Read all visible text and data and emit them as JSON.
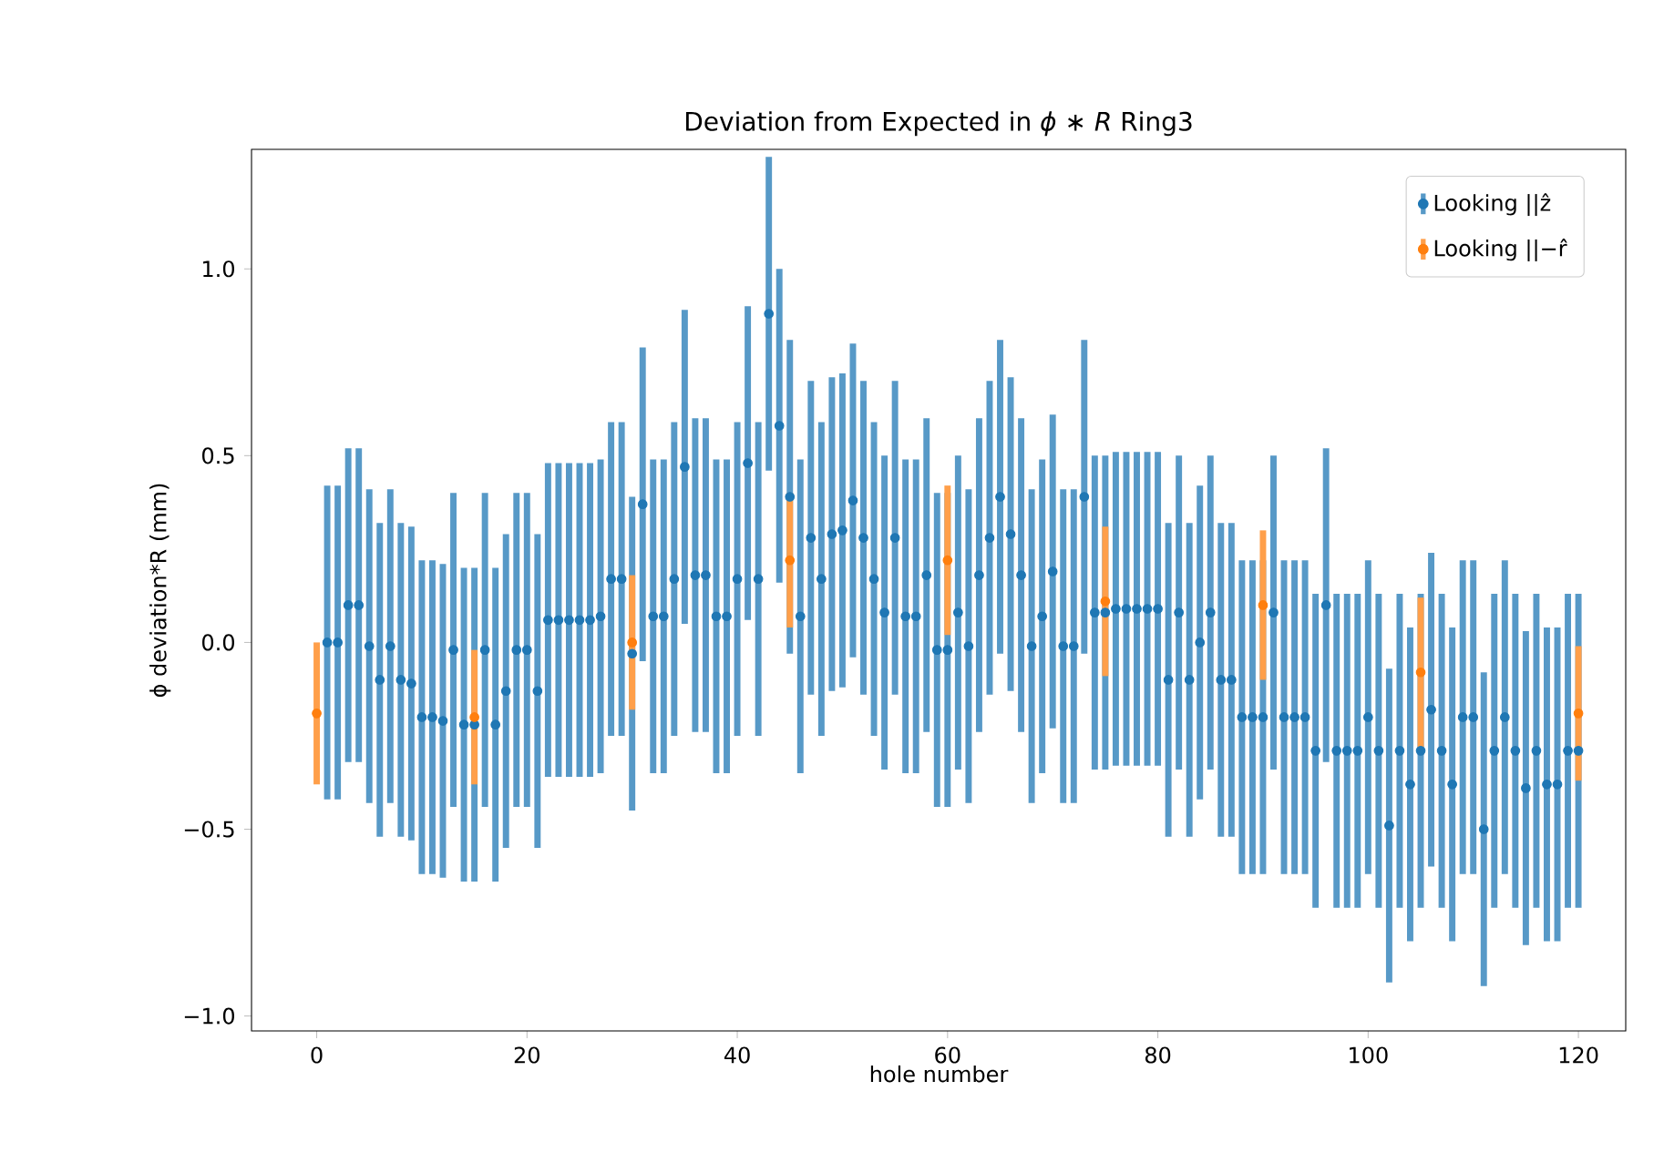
{
  "chart_data": {
    "type": "scatter",
    "title": "Deviation from Expected in *ϕ* ∗ *R* Ring3",
    "xlabel": "hole number",
    "ylabel": "ϕ deviation*R (mm)",
    "xlim": [
      -6.2,
      124.5
    ],
    "ylim": [
      -1.04,
      1.32
    ],
    "xticks": [
      0,
      20,
      40,
      60,
      80,
      100,
      120
    ],
    "yticks": [
      {
        "value": -1.0,
        "label": "−1.0"
      },
      {
        "value": -0.5,
        "label": "−0.5"
      },
      {
        "value": 0.0,
        "label": "0.0"
      },
      {
        "value": 0.5,
        "label": "0.5"
      },
      {
        "value": 1.0,
        "label": "1.0"
      }
    ],
    "legend": "top right",
    "marker": "circle",
    "series": [
      {
        "name": "Looking ||ẑ",
        "color": "#1f77b4",
        "x": [
          1,
          2,
          3,
          4,
          5,
          6,
          7,
          8,
          9,
          10,
          11,
          12,
          13,
          14,
          15,
          16,
          17,
          18,
          19,
          20,
          21,
          22,
          23,
          24,
          25,
          26,
          27,
          28,
          29,
          30,
          31,
          32,
          33,
          34,
          35,
          36,
          37,
          38,
          39,
          40,
          41,
          42,
          43,
          44,
          45,
          46,
          47,
          48,
          49,
          50,
          51,
          52,
          53,
          54,
          55,
          56,
          57,
          58,
          59,
          60,
          61,
          62,
          63,
          64,
          65,
          66,
          67,
          68,
          69,
          70,
          71,
          72,
          73,
          74,
          75,
          76,
          77,
          78,
          79,
          80,
          81,
          82,
          83,
          84,
          85,
          86,
          87,
          88,
          89,
          90,
          91,
          92,
          93,
          94,
          95,
          96,
          97,
          98,
          99,
          100,
          101,
          102,
          103,
          104,
          105,
          106,
          107,
          108,
          109,
          110,
          111,
          112,
          113,
          114,
          115,
          116,
          117,
          118,
          119,
          120
        ],
        "values": [
          0.0,
          0.0,
          0.1,
          0.1,
          -0.01,
          -0.1,
          -0.01,
          -0.1,
          -0.11,
          -0.2,
          -0.2,
          -0.21,
          -0.02,
          -0.22,
          -0.22,
          -0.02,
          -0.22,
          -0.13,
          -0.02,
          -0.02,
          -0.13,
          0.06,
          0.06,
          0.06,
          0.06,
          0.06,
          0.07,
          0.17,
          0.17,
          -0.03,
          0.37,
          0.07,
          0.07,
          0.17,
          0.47,
          0.18,
          0.18,
          0.07,
          0.07,
          0.17,
          0.48,
          0.17,
          0.88,
          0.58,
          0.39,
          0.07,
          0.28,
          0.17,
          0.29,
          0.3,
          0.38,
          0.28,
          0.17,
          0.08,
          0.28,
          0.07,
          0.07,
          0.18,
          -0.02,
          -0.02,
          0.08,
          -0.01,
          0.18,
          0.28,
          0.39,
          0.29,
          0.18,
          -0.01,
          0.07,
          0.19,
          -0.01,
          -0.01,
          0.39,
          0.08,
          0.08,
          0.09,
          0.09,
          0.09,
          0.09,
          0.09,
          -0.1,
          0.08,
          -0.1,
          0.0,
          0.08,
          -0.1,
          -0.1,
          -0.2,
          -0.2,
          -0.2,
          0.08,
          -0.2,
          -0.2,
          -0.2,
          -0.29,
          0.1,
          -0.29,
          -0.29,
          -0.29,
          -0.2,
          -0.29,
          -0.49,
          -0.29,
          -0.38,
          -0.29,
          -0.18,
          -0.29,
          -0.38,
          -0.2,
          -0.2,
          -0.5,
          -0.29,
          -0.2,
          -0.29,
          -0.39,
          -0.29,
          -0.38,
          -0.38,
          -0.29,
          -0.29
        ],
        "errors": [
          0.42,
          0.42,
          0.42,
          0.42,
          0.42,
          0.42,
          0.42,
          0.42,
          0.42,
          0.42,
          0.42,
          0.42,
          0.42,
          0.42,
          0.42,
          0.42,
          0.42,
          0.42,
          0.42,
          0.42,
          0.42,
          0.42,
          0.42,
          0.42,
          0.42,
          0.42,
          0.42,
          0.42,
          0.42,
          0.42,
          0.42,
          0.42,
          0.42,
          0.42,
          0.42,
          0.42,
          0.42,
          0.42,
          0.42,
          0.42,
          0.42,
          0.42,
          0.42,
          0.42,
          0.42,
          0.42,
          0.42,
          0.42,
          0.42,
          0.42,
          0.42,
          0.42,
          0.42,
          0.42,
          0.42,
          0.42,
          0.42,
          0.42,
          0.42,
          0.42,
          0.42,
          0.42,
          0.42,
          0.42,
          0.42,
          0.42,
          0.42,
          0.42,
          0.42,
          0.42,
          0.42,
          0.42,
          0.42,
          0.42,
          0.42,
          0.42,
          0.42,
          0.42,
          0.42,
          0.42,
          0.42,
          0.42,
          0.42,
          0.42,
          0.42,
          0.42,
          0.42,
          0.42,
          0.42,
          0.42,
          0.42,
          0.42,
          0.42,
          0.42,
          0.42,
          0.42,
          0.42,
          0.42,
          0.42,
          0.42,
          0.42,
          0.42,
          0.42,
          0.42,
          0.42,
          0.42,
          0.42,
          0.42,
          0.42,
          0.42,
          0.42,
          0.42,
          0.42,
          0.42,
          0.42,
          0.42,
          0.42,
          0.42,
          0.42,
          0.42
        ]
      },
      {
        "name": "Looking ||−r̂",
        "color": "#ff7f0e",
        "x": [
          0,
          15,
          30,
          45,
          60,
          75,
          90,
          105,
          120
        ],
        "values": [
          -0.19,
          -0.2,
          0.0,
          0.22,
          0.22,
          0.11,
          0.1,
          -0.08,
          -0.19
        ],
        "errors": [
          0.19,
          0.18,
          0.18,
          0.18,
          0.2,
          0.2,
          0.2,
          0.2,
          0.18
        ]
      }
    ]
  }
}
